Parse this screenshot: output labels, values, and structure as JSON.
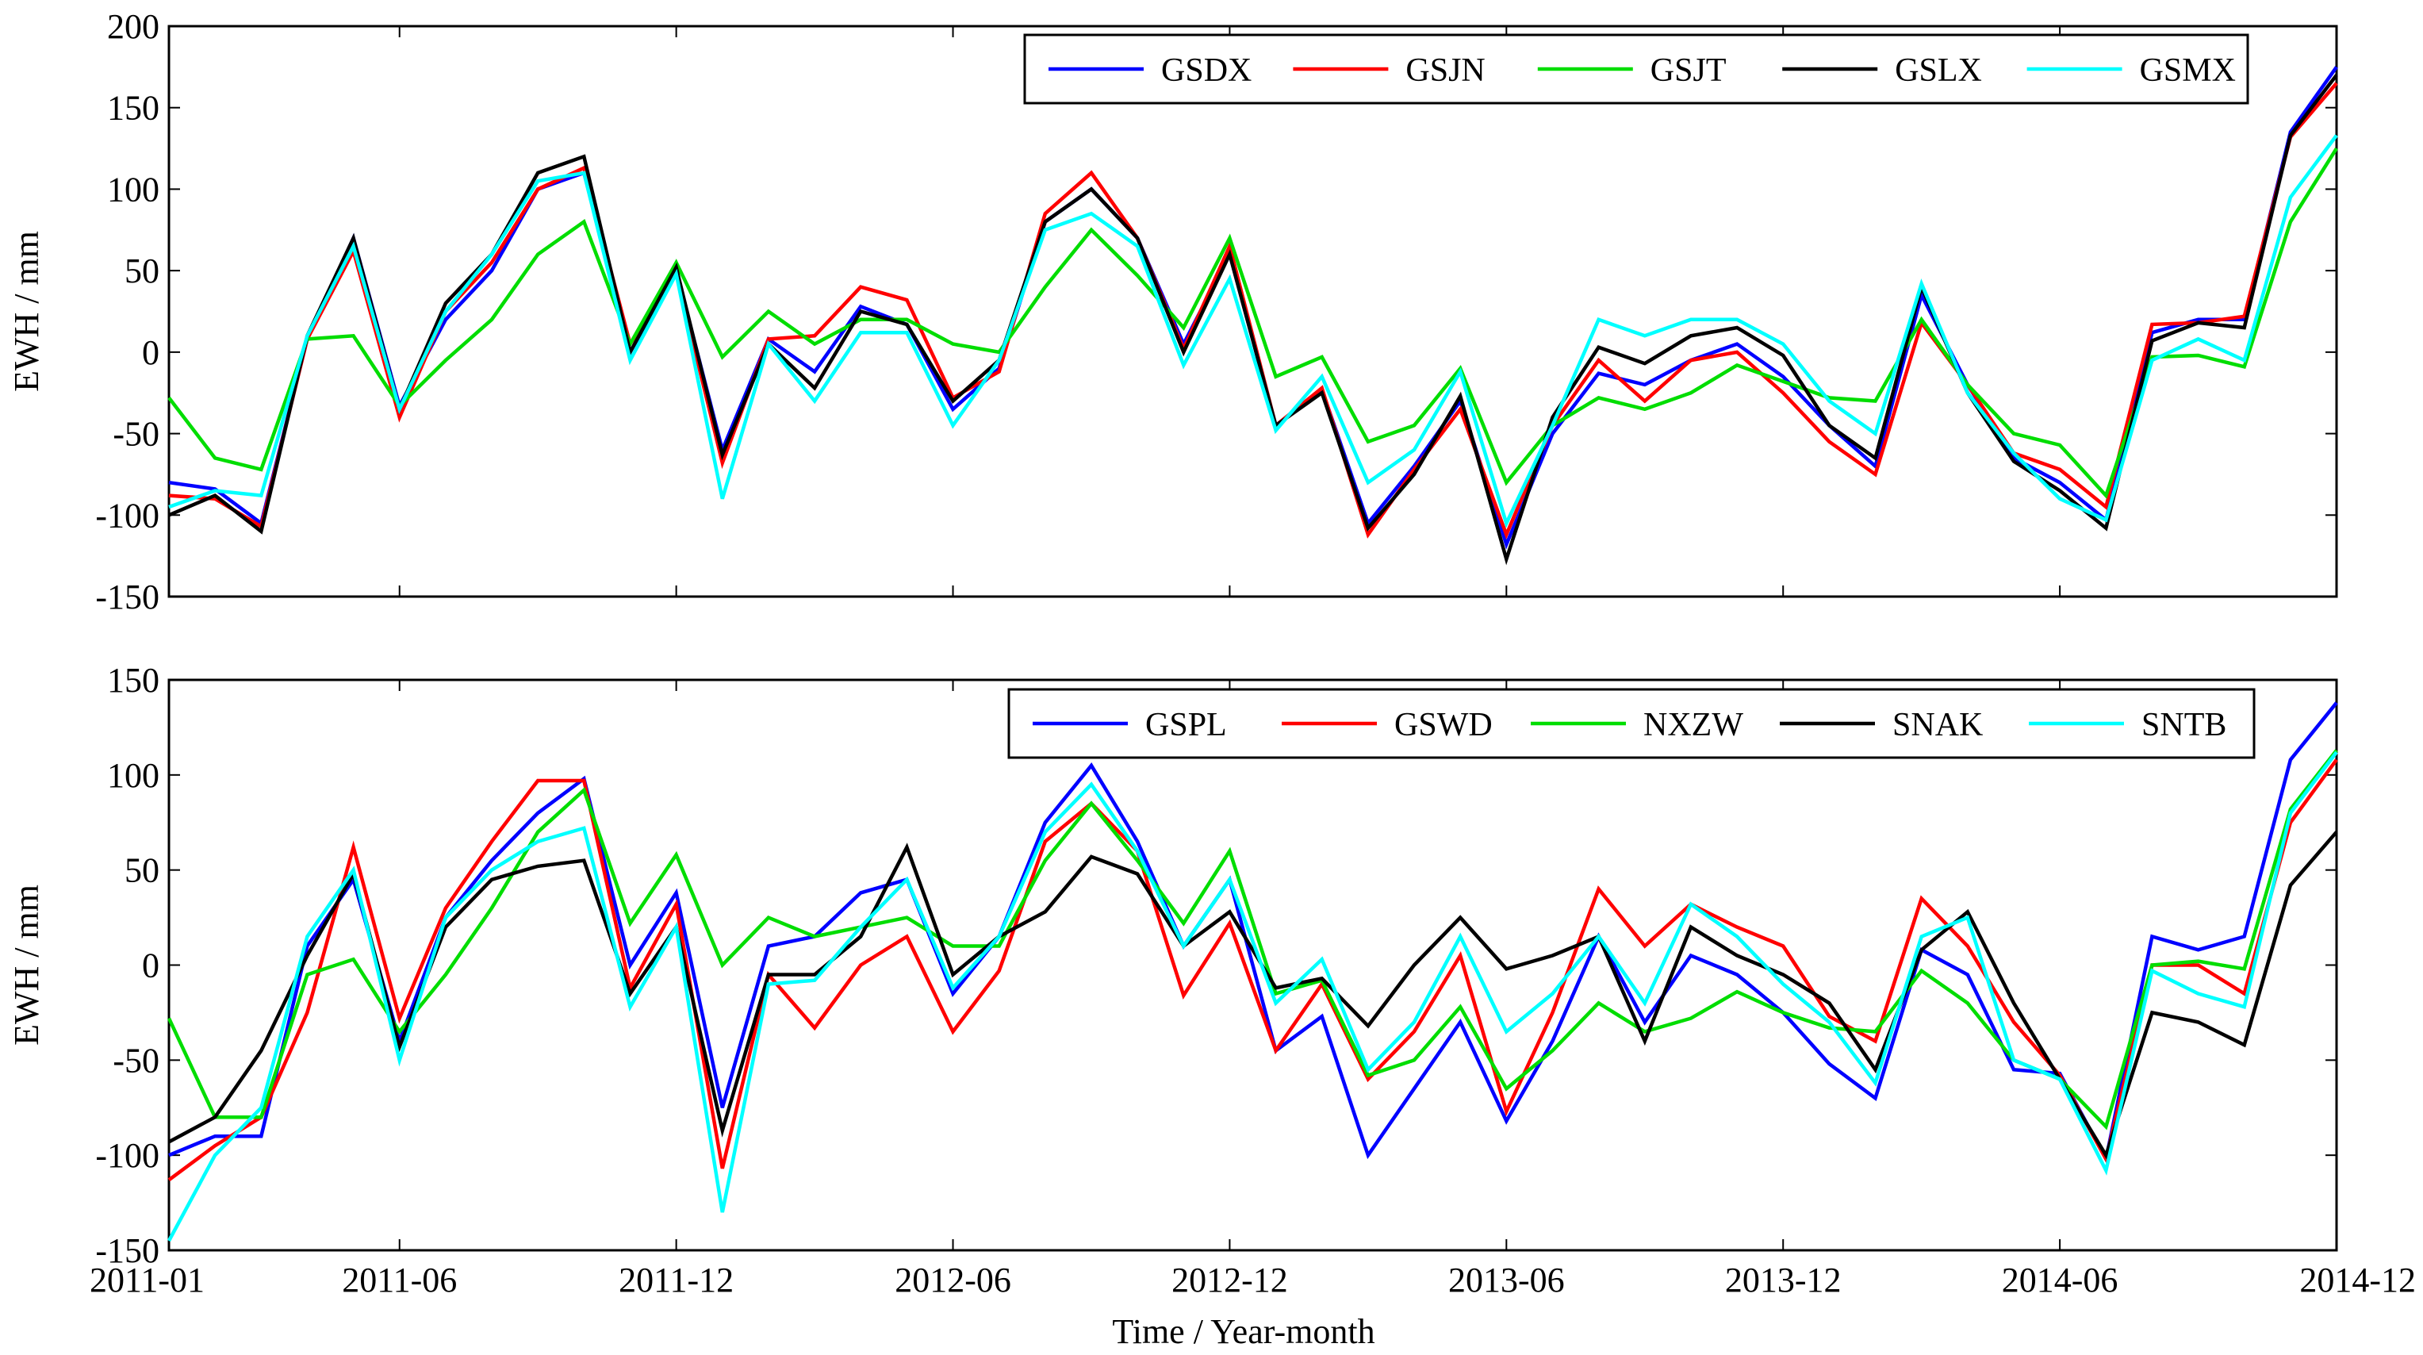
{
  "figure": {
    "xlabel": "Time / Year-month",
    "colors": {
      "blue": "#0000ff",
      "red": "#ff0000",
      "green": "#00dd00",
      "black": "#000000",
      "cyan": "#00ffff"
    }
  },
  "chart_data": [
    {
      "type": "line",
      "title": "",
      "ylabel": "EWH / mm",
      "xlabel": "",
      "ylim": [
        -150,
        200
      ],
      "yticks": [
        -150,
        -100,
        -50,
        0,
        50,
        100,
        150,
        200
      ],
      "xlim": [
        0,
        47
      ],
      "xticks": [
        0,
        5,
        11,
        17,
        23,
        29,
        35,
        41,
        47
      ],
      "xticklabels": [
        "",
        "",
        "",
        "",
        "",
        "",
        "",
        "",
        ""
      ],
      "legend_position": "top-right",
      "series": [
        {
          "name": "GSDX",
          "color": "#0000ff",
          "values": [
            -80,
            -84,
            -105,
            8,
            70,
            -33,
            20,
            50,
            100,
            110,
            0,
            50,
            -60,
            8,
            -12,
            28,
            17,
            -35,
            -10,
            80,
            100,
            70,
            5,
            60,
            -45,
            -23,
            -105,
            -70,
            -30,
            -118,
            -50,
            -13,
            -20,
            -5,
            5,
            -15,
            -45,
            -70,
            35,
            -20,
            -65,
            -80,
            -103,
            12,
            20,
            20,
            135,
            175
          ]
        },
        {
          "name": "GSJN",
          "color": "#ff0000",
          "values": [
            -88,
            -90,
            -107,
            8,
            62,
            -40,
            25,
            55,
            100,
            113,
            5,
            48,
            -68,
            8,
            10,
            40,
            32,
            -28,
            -12,
            85,
            110,
            70,
            2,
            65,
            -45,
            -22,
            -112,
            -72,
            -35,
            -112,
            -45,
            -5,
            -30,
            -5,
            0,
            -25,
            -55,
            -75,
            18,
            -20,
            -62,
            -72,
            -95,
            17,
            18,
            22,
            132,
            165
          ]
        },
        {
          "name": "GSJT",
          "color": "#00dd00",
          "values": [
            -28,
            -65,
            -72,
            8,
            10,
            -33,
            -5,
            20,
            60,
            80,
            5,
            55,
            -3,
            25,
            5,
            20,
            20,
            5,
            0,
            40,
            75,
            47,
            15,
            70,
            -15,
            -3,
            -55,
            -45,
            -10,
            -80,
            -45,
            -28,
            -35,
            -25,
            -8,
            -18,
            -28,
            -30,
            20,
            -20,
            -50,
            -57,
            -88,
            -3,
            -2,
            -9,
            80,
            125
          ]
        },
        {
          "name": "GSLX",
          "color": "#000000",
          "values": [
            -100,
            -88,
            -110,
            10,
            70,
            -35,
            30,
            60,
            110,
            120,
            0,
            52,
            -63,
            5,
            -22,
            25,
            17,
            -30,
            -5,
            80,
            100,
            70,
            0,
            60,
            -45,
            -25,
            -108,
            -75,
            -27,
            -127,
            -40,
            3,
            -7,
            10,
            15,
            -2,
            -45,
            -65,
            40,
            -25,
            -67,
            -85,
            -108,
            7,
            18,
            15,
            133,
            170
          ]
        },
        {
          "name": "GSMX",
          "color": "#00ffff",
          "values": [
            -95,
            -85,
            -88,
            10,
            65,
            -35,
            25,
            60,
            105,
            110,
            -5,
            48,
            -90,
            5,
            -30,
            12,
            12,
            -45,
            -5,
            75,
            85,
            65,
            -8,
            45,
            -48,
            -15,
            -80,
            -60,
            -12,
            -105,
            -45,
            20,
            10,
            20,
            20,
            5,
            -30,
            -50,
            42,
            -25,
            -62,
            -90,
            -103,
            -5,
            8,
            -5,
            95,
            133
          ]
        }
      ]
    },
    {
      "type": "line",
      "title": "",
      "ylabel": "EWH / mm",
      "xlabel": "Time / Year-month",
      "ylim": [
        -150,
        150
      ],
      "yticks": [
        -150,
        -100,
        -50,
        0,
        50,
        100,
        150
      ],
      "xlim": [
        0,
        47
      ],
      "xticks": [
        0,
        5,
        11,
        17,
        23,
        29,
        35,
        41,
        47
      ],
      "xticklabels": [
        "2011-01",
        "2011-06",
        "2011-12",
        "2012-06",
        "2012-12",
        "2013-06",
        "2013-12",
        "2014-06",
        "2014-12"
      ],
      "legend_position": "top-right",
      "series": [
        {
          "name": "GSPL",
          "color": "#0000ff",
          "values": [
            -100,
            -90,
            -90,
            10,
            45,
            -40,
            25,
            55,
            80,
            98,
            0,
            38,
            -75,
            10,
            15,
            38,
            45,
            -15,
            15,
            75,
            105,
            65,
            10,
            45,
            -45,
            -27,
            -100,
            -65,
            -30,
            -82,
            -40,
            15,
            -30,
            5,
            -5,
            -25,
            -52,
            -70,
            8,
            -5,
            -55,
            -57,
            -102,
            15,
            8,
            15,
            108,
            138
          ]
        },
        {
          "name": "GSWD",
          "color": "#ff0000",
          "values": [
            -113,
            -95,
            -80,
            -25,
            62,
            -28,
            30,
            65,
            97,
            97,
            -12,
            32,
            -107,
            -5,
            -33,
            0,
            15,
            -35,
            -3,
            65,
            85,
            60,
            -16,
            22,
            -45,
            -10,
            -60,
            -35,
            5,
            -77,
            -25,
            40,
            10,
            32,
            20,
            10,
            -27,
            -40,
            35,
            10,
            -30,
            -58,
            -102,
            0,
            0,
            -15,
            75,
            108
          ]
        },
        {
          "name": "NXZW",
          "color": "#00dd00",
          "values": [
            -28,
            -80,
            -80,
            -5,
            3,
            -35,
            -5,
            30,
            70,
            92,
            22,
            58,
            0,
            25,
            15,
            20,
            25,
            10,
            10,
            55,
            85,
            55,
            22,
            60,
            -15,
            -8,
            -58,
            -50,
            -22,
            -65,
            -45,
            -20,
            -35,
            -28,
            -14,
            -25,
            -33,
            -35,
            -3,
            -20,
            -50,
            -60,
            -85,
            0,
            2,
            -2,
            82,
            113
          ]
        },
        {
          "name": "SNAK",
          "color": "#000000",
          "values": [
            -93,
            -80,
            -45,
            5,
            48,
            -43,
            20,
            45,
            52,
            55,
            -15,
            20,
            -87,
            -5,
            -5,
            15,
            62,
            -5,
            15,
            28,
            57,
            48,
            10,
            28,
            -12,
            -7,
            -32,
            0,
            25,
            -2,
            5,
            15,
            -40,
            20,
            5,
            -5,
            -20,
            -55,
            8,
            28,
            -20,
            -60,
            -100,
            -25,
            -30,
            -42,
            42,
            70
          ]
        },
        {
          "name": "SNTB",
          "color": "#00ffff",
          "values": [
            -145,
            -100,
            -75,
            15,
            50,
            -50,
            25,
            50,
            65,
            72,
            -22,
            20,
            -130,
            -10,
            -8,
            20,
            45,
            -12,
            15,
            70,
            95,
            60,
            10,
            45,
            -20,
            3,
            -55,
            -30,
            15,
            -35,
            -15,
            15,
            -20,
            32,
            15,
            -10,
            -30,
            -62,
            15,
            25,
            -50,
            -60,
            -108,
            -3,
            -15,
            -22,
            80,
            112
          ]
        }
      ]
    }
  ]
}
